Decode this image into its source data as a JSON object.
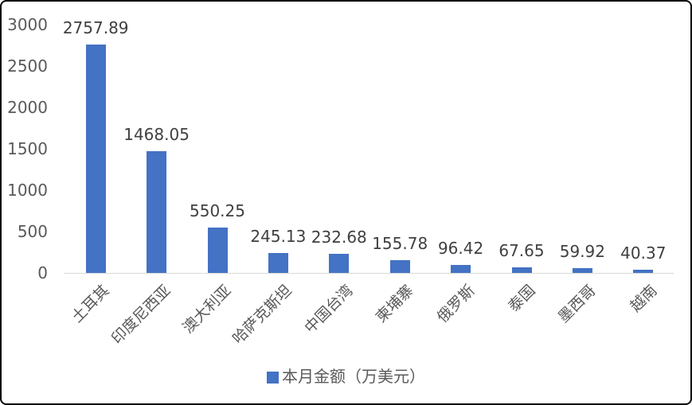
{
  "chart_data": {
    "type": "bar",
    "title": "",
    "xlabel": "",
    "ylabel": "",
    "categories": [
      "土耳其",
      "印度尼西亚",
      "澳大利亚",
      "哈萨克斯坦",
      "中国台湾",
      "柬埔寨",
      "俄罗斯",
      "泰国",
      "墨西哥",
      "越南"
    ],
    "values": [
      2757.89,
      1468.05,
      550.25,
      245.13,
      232.68,
      155.78,
      96.42,
      67.65,
      59.92,
      40.37
    ],
    "value_labels": [
      "2757.89",
      "1468.05",
      "550.25",
      "245.13",
      "232.68",
      "155.78",
      "96.42",
      "67.65",
      "59.92",
      "40.37"
    ],
    "ylim": [
      0,
      3000
    ],
    "yticks": [
      0,
      500,
      1000,
      1500,
      2000,
      2500,
      3000
    ],
    "grid": false,
    "legend": {
      "position": "bottom",
      "label": "本月金额（万美元）"
    },
    "colors": {
      "bar": "#4472C4",
      "axis_line": "#d9d9d9",
      "tick_label": "#595959",
      "data_label": "#404040",
      "frame_border": "#000000",
      "background": "#ffffff"
    }
  }
}
